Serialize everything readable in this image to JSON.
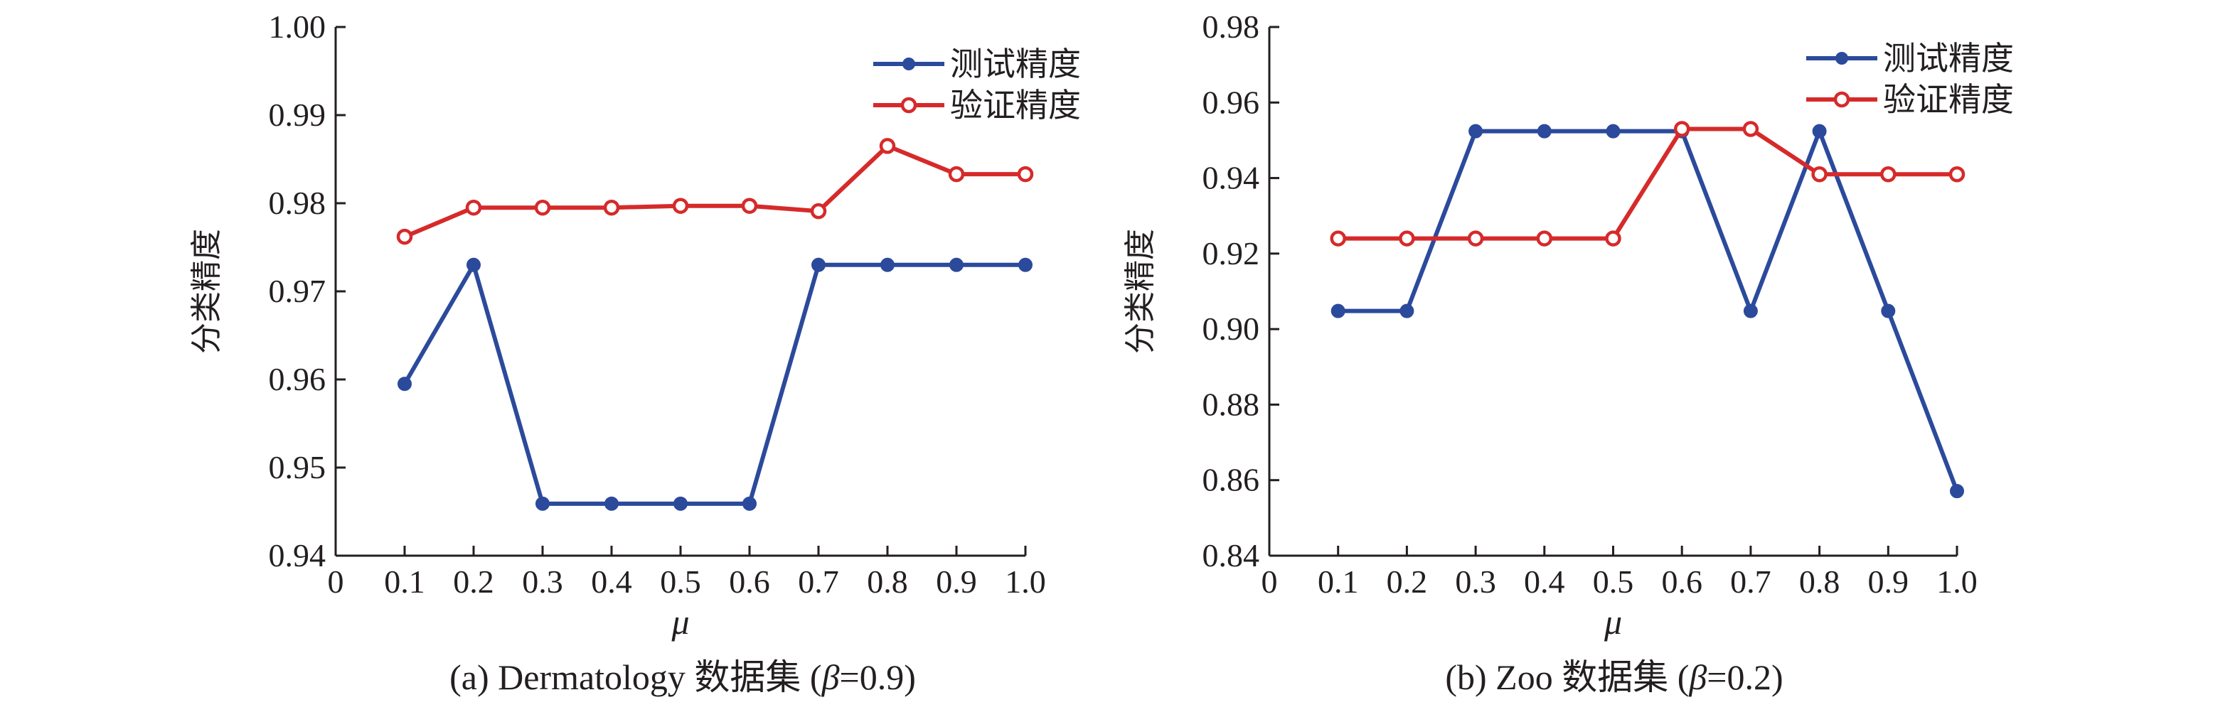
{
  "chart_data": [
    {
      "type": "line",
      "x": [
        0.1,
        0.2,
        0.3,
        0.4,
        0.5,
        0.6,
        0.7,
        0.8,
        0.9,
        1.0
      ],
      "xticks": [
        "0",
        "0.1",
        "0.2",
        "0.3",
        "0.4",
        "0.5",
        "0.6",
        "0.7",
        "0.8",
        "0.9",
        "1.0"
      ],
      "xlim": [
        0,
        1.0
      ],
      "yticks": [
        "0.94",
        "0.95",
        "0.96",
        "0.97",
        "0.98",
        "0.99",
        "1.00"
      ],
      "ylim": [
        0.94,
        1.0
      ],
      "xlabel": "μ",
      "ylabel": "分类精度",
      "caption_pre": "(a) Dermatology 数据集 (",
      "caption_beta": "β",
      "caption_post": "=0.9)",
      "legend_placement": "top-right",
      "series": [
        {
          "name": "测试精度",
          "color": "#2b4a9c",
          "marker": "filled-circle",
          "values": [
            0.9595,
            0.973,
            0.9459,
            0.9459,
            0.9459,
            0.9459,
            0.973,
            0.973,
            0.973,
            0.973
          ]
        },
        {
          "name": "验证精度",
          "color": "#d62a2a",
          "marker": "open-circle",
          "values": [
            0.9762,
            0.9795,
            0.9795,
            0.9795,
            0.9797,
            0.9797,
            0.9791,
            0.9865,
            0.9833,
            0.9833
          ]
        }
      ]
    },
    {
      "type": "line",
      "x": [
        0.1,
        0.2,
        0.3,
        0.4,
        0.5,
        0.6,
        0.7,
        0.8,
        0.9,
        1.0
      ],
      "xticks": [
        "0",
        "0.1",
        "0.2",
        "0.3",
        "0.4",
        "0.5",
        "0.6",
        "0.7",
        "0.8",
        "0.9",
        "1.0"
      ],
      "xlim": [
        0,
        1.0
      ],
      "yticks": [
        "0.84",
        "0.86",
        "0.88",
        "0.90",
        "0.92",
        "0.94",
        "0.96",
        "0.98"
      ],
      "ylim": [
        0.84,
        0.98
      ],
      "xlabel": "μ",
      "ylabel": "分类精度",
      "caption_pre": "(b) Zoo 数据集 (",
      "caption_beta": "β",
      "caption_post": "=0.2)",
      "legend_placement": "top-right",
      "series": [
        {
          "name": "测试精度",
          "color": "#2b4a9c",
          "marker": "filled-circle",
          "values": [
            0.9048,
            0.9048,
            0.9524,
            0.9524,
            0.9524,
            0.9524,
            0.9048,
            0.9524,
            0.9048,
            0.8571
          ]
        },
        {
          "name": "验证精度",
          "color": "#d62a2a",
          "marker": "open-circle",
          "values": [
            0.924,
            0.924,
            0.924,
            0.924,
            0.924,
            0.953,
            0.953,
            0.941,
            0.941,
            0.941
          ]
        }
      ]
    }
  ]
}
